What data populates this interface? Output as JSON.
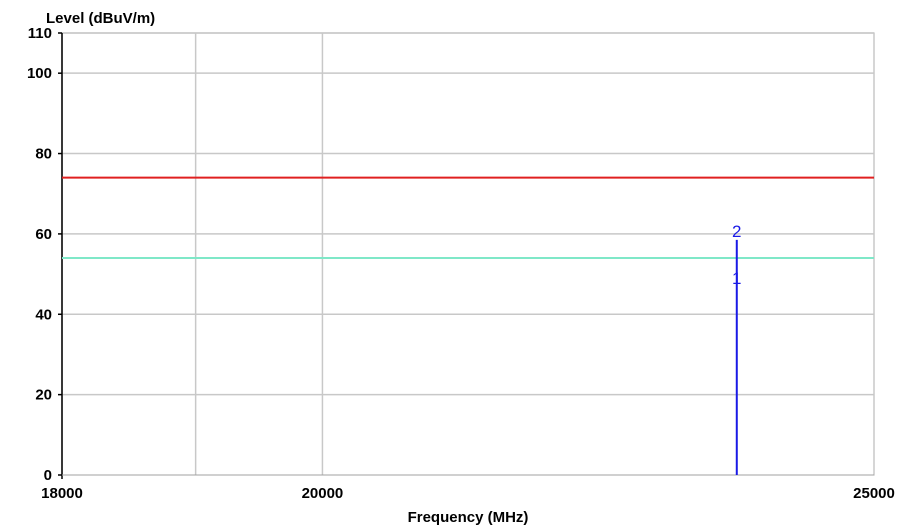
{
  "chart_data": {
    "type": "line",
    "title": "",
    "ylabel": "Level (dBuV/m)",
    "xlabel": "Frequency (MHz)",
    "x_scale": "log",
    "xlim": [
      18000,
      25000
    ],
    "ylim": [
      0,
      110
    ],
    "x_ticks": [
      {
        "value": 18000,
        "label": "18000"
      },
      {
        "value": 20000,
        "label": "20000"
      },
      {
        "value": 25000,
        "label": "25000"
      }
    ],
    "y_ticks": [
      {
        "value": 0,
        "label": "0"
      },
      {
        "value": 20,
        "label": "20"
      },
      {
        "value": 40,
        "label": "40"
      },
      {
        "value": 60,
        "label": "60"
      },
      {
        "value": 80,
        "label": "80"
      },
      {
        "value": 100,
        "label": "100"
      },
      {
        "value": 110,
        "label": "110"
      }
    ],
    "x_gridlines": [
      18000,
      19000,
      20000,
      25000
    ],
    "y_gridlines": [
      20,
      40,
      60,
      80,
      100
    ],
    "grid": true,
    "series": [
      {
        "kind": "limit",
        "color": "#e02020",
        "y": 74
      },
      {
        "kind": "limit",
        "color": "#7fe8c8",
        "y": 54
      }
    ],
    "markers": [
      {
        "label": "2",
        "x": 23650,
        "y": 58.5,
        "color": "#1a1ae6"
      },
      {
        "label": "1",
        "x": 23650,
        "y": 50,
        "color": "#1a1ae6"
      }
    ]
  }
}
